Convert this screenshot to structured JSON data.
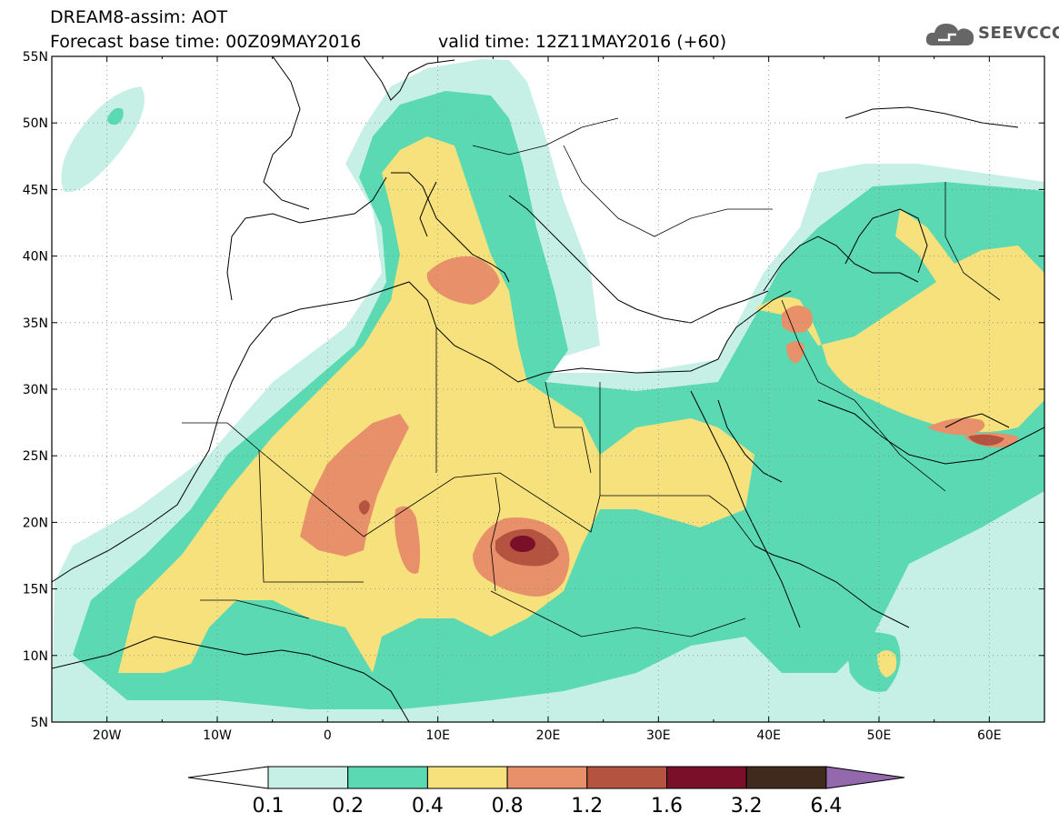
{
  "header": {
    "title": "DREAM8-assim: AOT",
    "base_time": "Forecast base time: 00Z09MAY2016",
    "valid_time": "valid time: 12Z11MAY2016 (+60)",
    "logo_text": "SEEVCCC"
  },
  "map": {
    "lon_ticks": [
      "20W",
      "10W",
      "0",
      "10E",
      "20E",
      "30E",
      "40E",
      "50E",
      "60E"
    ],
    "lat_ticks": [
      "55N",
      "50N",
      "45N",
      "40N",
      "35N",
      "30N",
      "25N",
      "20N",
      "15N",
      "10N",
      "5N"
    ],
    "extent": {
      "lon_min": -25,
      "lon_max": 65,
      "lat_min": 5,
      "lat_max": 55
    },
    "quantity": "AOT"
  },
  "legend": {
    "labels": [
      "0.1",
      "0.2",
      "0.4",
      "0.8",
      "1.2",
      "1.6",
      "3.2",
      "6.4"
    ],
    "colors": [
      "#ffffff",
      "#c6f0e6",
      "#5ad9b2",
      "#f6e17c",
      "#e8906a",
      "#b4533f",
      "#7a0f2a",
      "#3f2a1d",
      "#9468ad"
    ]
  },
  "colors": {
    "land_bg": "#ffffff",
    "level1": "#c6f0e6",
    "level2": "#5ad9b2",
    "level3": "#f6e17c",
    "level4": "#e8906a",
    "level5": "#b4533f",
    "level6": "#7a0f2a"
  },
  "icons": {
    "logo": "cloud-icon"
  }
}
